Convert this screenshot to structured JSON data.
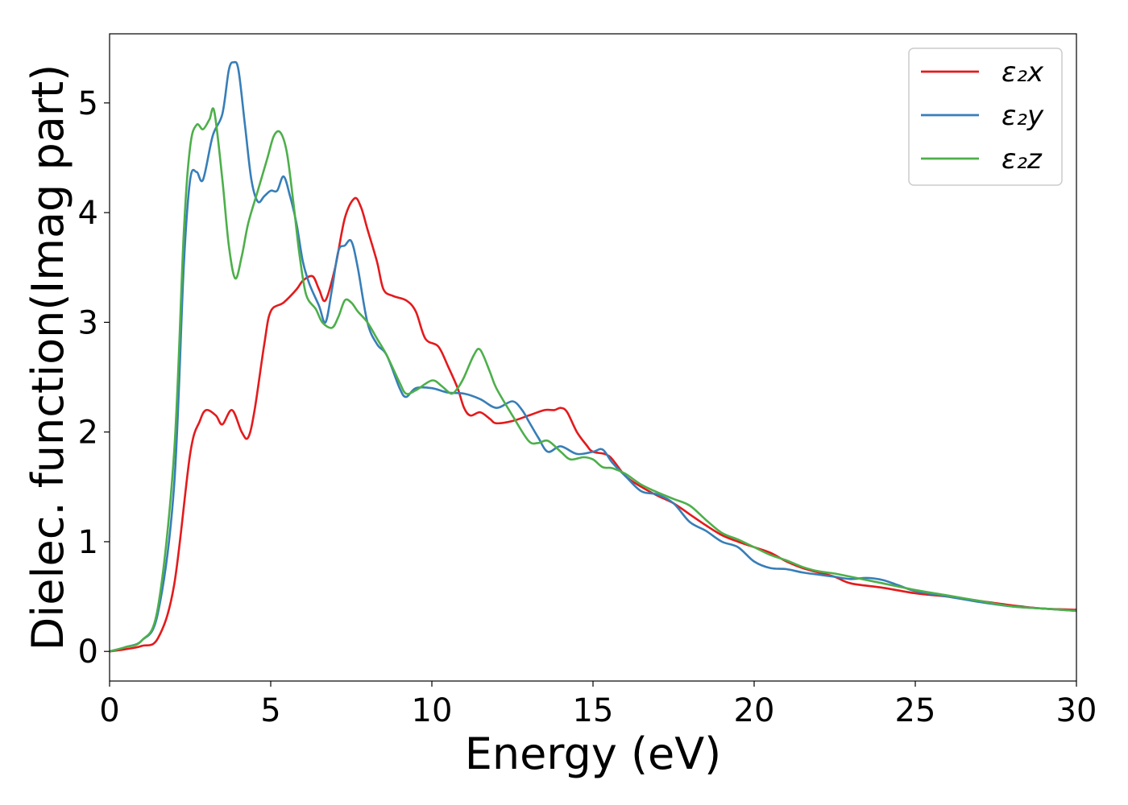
{
  "chart_data": {
    "type": "line",
    "title": "",
    "xlabel": "Energy (eV)",
    "ylabel": "Dielec. function(Imag part)",
    "xlim": [
      0,
      30
    ],
    "ylim": [
      -0.27,
      5.63
    ],
    "xticks": [
      0,
      5,
      10,
      15,
      20,
      25,
      30
    ],
    "yticks": [
      0,
      1,
      2,
      3,
      4,
      5
    ],
    "grid": false,
    "legend_position": "top-right",
    "series": [
      {
        "name": "ε₂x",
        "color": "#e41a1c",
        "points": [
          [
            0,
            0
          ],
          [
            0.5,
            0.02
          ],
          [
            1.0,
            0.05
          ],
          [
            1.5,
            0.12
          ],
          [
            2.0,
            0.6
          ],
          [
            2.5,
            1.8
          ],
          [
            2.8,
            2.1
          ],
          [
            3.0,
            2.2
          ],
          [
            3.3,
            2.15
          ],
          [
            3.5,
            2.07
          ],
          [
            3.8,
            2.2
          ],
          [
            4.1,
            2.0
          ],
          [
            4.3,
            1.95
          ],
          [
            4.5,
            2.2
          ],
          [
            4.8,
            2.8
          ],
          [
            5.0,
            3.1
          ],
          [
            5.4,
            3.18
          ],
          [
            5.8,
            3.3
          ],
          [
            6.0,
            3.38
          ],
          [
            6.3,
            3.42
          ],
          [
            6.5,
            3.3
          ],
          [
            6.7,
            3.2
          ],
          [
            7.0,
            3.5
          ],
          [
            7.3,
            3.95
          ],
          [
            7.6,
            4.13
          ],
          [
            7.8,
            4.05
          ],
          [
            8.0,
            3.85
          ],
          [
            8.3,
            3.55
          ],
          [
            8.5,
            3.3
          ],
          [
            8.8,
            3.24
          ],
          [
            9.2,
            3.2
          ],
          [
            9.5,
            3.1
          ],
          [
            9.8,
            2.85
          ],
          [
            10.2,
            2.78
          ],
          [
            10.5,
            2.6
          ],
          [
            10.8,
            2.4
          ],
          [
            11.0,
            2.22
          ],
          [
            11.2,
            2.15
          ],
          [
            11.5,
            2.18
          ],
          [
            11.8,
            2.12
          ],
          [
            12.0,
            2.08
          ],
          [
            12.5,
            2.1
          ],
          [
            13.0,
            2.15
          ],
          [
            13.5,
            2.2
          ],
          [
            13.8,
            2.2
          ],
          [
            14.0,
            2.22
          ],
          [
            14.2,
            2.18
          ],
          [
            14.5,
            2.0
          ],
          [
            14.8,
            1.88
          ],
          [
            15.0,
            1.82
          ],
          [
            15.5,
            1.78
          ],
          [
            16.0,
            1.6
          ],
          [
            16.5,
            1.5
          ],
          [
            17.0,
            1.42
          ],
          [
            17.5,
            1.35
          ],
          [
            18.0,
            1.25
          ],
          [
            18.5,
            1.15
          ],
          [
            19.0,
            1.06
          ],
          [
            19.5,
            1.0
          ],
          [
            20.0,
            0.95
          ],
          [
            20.5,
            0.9
          ],
          [
            21.0,
            0.82
          ],
          [
            21.5,
            0.76
          ],
          [
            22.0,
            0.72
          ],
          [
            22.5,
            0.68
          ],
          [
            23.0,
            0.62
          ],
          [
            24.0,
            0.58
          ],
          [
            25.0,
            0.53
          ],
          [
            26.0,
            0.5
          ],
          [
            27.0,
            0.46
          ],
          [
            28.0,
            0.42
          ],
          [
            29.0,
            0.39
          ],
          [
            30.0,
            0.38
          ]
        ]
      },
      {
        "name": "ε₂y",
        "color": "#377eb8",
        "points": [
          [
            0,
            0
          ],
          [
            0.5,
            0.04
          ],
          [
            1.0,
            0.1
          ],
          [
            1.5,
            0.35
          ],
          [
            2.0,
            1.5
          ],
          [
            2.3,
            3.5
          ],
          [
            2.5,
            4.3
          ],
          [
            2.7,
            4.37
          ],
          [
            2.9,
            4.3
          ],
          [
            3.2,
            4.7
          ],
          [
            3.5,
            4.9
          ],
          [
            3.7,
            5.3
          ],
          [
            3.85,
            5.37
          ],
          [
            4.0,
            5.3
          ],
          [
            4.2,
            4.8
          ],
          [
            4.4,
            4.3
          ],
          [
            4.6,
            4.1
          ],
          [
            4.8,
            4.15
          ],
          [
            5.0,
            4.2
          ],
          [
            5.2,
            4.2
          ],
          [
            5.4,
            4.33
          ],
          [
            5.6,
            4.15
          ],
          [
            5.8,
            3.9
          ],
          [
            6.0,
            3.55
          ],
          [
            6.2,
            3.35
          ],
          [
            6.5,
            3.15
          ],
          [
            6.7,
            3.0
          ],
          [
            6.9,
            3.3
          ],
          [
            7.1,
            3.65
          ],
          [
            7.3,
            3.7
          ],
          [
            7.5,
            3.74
          ],
          [
            7.7,
            3.5
          ],
          [
            8.0,
            3.0
          ],
          [
            8.3,
            2.8
          ],
          [
            8.6,
            2.7
          ],
          [
            9.0,
            2.4
          ],
          [
            9.2,
            2.32
          ],
          [
            9.5,
            2.4
          ],
          [
            10.0,
            2.4
          ],
          [
            10.5,
            2.36
          ],
          [
            11.0,
            2.35
          ],
          [
            11.5,
            2.3
          ],
          [
            12.0,
            2.22
          ],
          [
            12.5,
            2.28
          ],
          [
            12.8,
            2.2
          ],
          [
            13.0,
            2.1
          ],
          [
            13.3,
            1.95
          ],
          [
            13.6,
            1.82
          ],
          [
            14.0,
            1.87
          ],
          [
            14.5,
            1.8
          ],
          [
            15.0,
            1.82
          ],
          [
            15.3,
            1.84
          ],
          [
            15.6,
            1.72
          ],
          [
            16.0,
            1.6
          ],
          [
            16.5,
            1.46
          ],
          [
            17.0,
            1.43
          ],
          [
            17.5,
            1.35
          ],
          [
            18.0,
            1.18
          ],
          [
            18.5,
            1.1
          ],
          [
            19.0,
            1.0
          ],
          [
            19.5,
            0.95
          ],
          [
            20.0,
            0.82
          ],
          [
            20.5,
            0.76
          ],
          [
            21.0,
            0.75
          ],
          [
            21.5,
            0.72
          ],
          [
            22.0,
            0.7
          ],
          [
            22.5,
            0.68
          ],
          [
            23.0,
            0.66
          ],
          [
            23.5,
            0.67
          ],
          [
            24.0,
            0.65
          ],
          [
            24.5,
            0.6
          ],
          [
            25.0,
            0.55
          ],
          [
            26.0,
            0.5
          ],
          [
            27.0,
            0.45
          ],
          [
            28.0,
            0.41
          ],
          [
            29.0,
            0.39
          ],
          [
            30.0,
            0.37
          ]
        ]
      },
      {
        "name": "ε₂z",
        "color": "#4daf4a",
        "points": [
          [
            0,
            0
          ],
          [
            0.5,
            0.04
          ],
          [
            1.0,
            0.1
          ],
          [
            1.5,
            0.4
          ],
          [
            2.0,
            1.8
          ],
          [
            2.3,
            3.8
          ],
          [
            2.5,
            4.6
          ],
          [
            2.7,
            4.8
          ],
          [
            2.9,
            4.76
          ],
          [
            3.1,
            4.85
          ],
          [
            3.25,
            4.92
          ],
          [
            3.5,
            4.3
          ],
          [
            3.7,
            3.7
          ],
          [
            3.9,
            3.4
          ],
          [
            4.1,
            3.6
          ],
          [
            4.3,
            3.9
          ],
          [
            4.6,
            4.2
          ],
          [
            4.9,
            4.5
          ],
          [
            5.1,
            4.7
          ],
          [
            5.3,
            4.73
          ],
          [
            5.5,
            4.55
          ],
          [
            5.7,
            4.1
          ],
          [
            5.9,
            3.6
          ],
          [
            6.1,
            3.25
          ],
          [
            6.4,
            3.12
          ],
          [
            6.6,
            3.0
          ],
          [
            6.9,
            2.95
          ],
          [
            7.1,
            3.05
          ],
          [
            7.3,
            3.2
          ],
          [
            7.5,
            3.18
          ],
          [
            7.7,
            3.1
          ],
          [
            8.0,
            3.0
          ],
          [
            8.3,
            2.85
          ],
          [
            8.6,
            2.7
          ],
          [
            9.0,
            2.45
          ],
          [
            9.2,
            2.35
          ],
          [
            9.5,
            2.38
          ],
          [
            10.0,
            2.47
          ],
          [
            10.3,
            2.42
          ],
          [
            10.6,
            2.35
          ],
          [
            10.8,
            2.4
          ],
          [
            11.0,
            2.5
          ],
          [
            11.3,
            2.7
          ],
          [
            11.5,
            2.75
          ],
          [
            11.8,
            2.55
          ],
          [
            12.0,
            2.4
          ],
          [
            12.5,
            2.15
          ],
          [
            13.0,
            1.92
          ],
          [
            13.3,
            1.9
          ],
          [
            13.6,
            1.92
          ],
          [
            14.0,
            1.82
          ],
          [
            14.3,
            1.75
          ],
          [
            14.7,
            1.77
          ],
          [
            15.0,
            1.75
          ],
          [
            15.3,
            1.68
          ],
          [
            15.6,
            1.67
          ],
          [
            16.0,
            1.62
          ],
          [
            16.5,
            1.52
          ],
          [
            17.0,
            1.45
          ],
          [
            17.5,
            1.39
          ],
          [
            18.0,
            1.33
          ],
          [
            18.5,
            1.2
          ],
          [
            19.0,
            1.08
          ],
          [
            19.5,
            1.02
          ],
          [
            20.0,
            0.95
          ],
          [
            20.5,
            0.88
          ],
          [
            21.0,
            0.83
          ],
          [
            21.5,
            0.77
          ],
          [
            22.0,
            0.73
          ],
          [
            22.5,
            0.71
          ],
          [
            23.0,
            0.68
          ],
          [
            24.0,
            0.62
          ],
          [
            25.0,
            0.56
          ],
          [
            26.0,
            0.51
          ],
          [
            27.0,
            0.46
          ],
          [
            28.0,
            0.41
          ],
          [
            29.0,
            0.39
          ],
          [
            30.0,
            0.37
          ]
        ]
      }
    ]
  }
}
